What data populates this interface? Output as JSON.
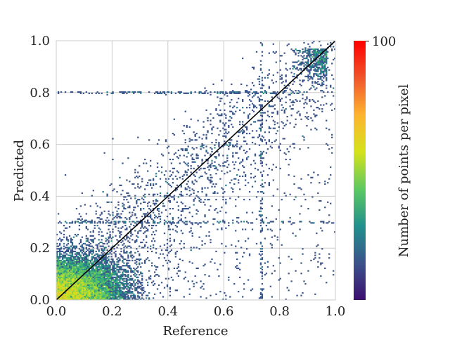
{
  "chart_data": {
    "type": "heatmap",
    "xlabel": "Reference",
    "ylabel": "Predicted",
    "xlim": [
      0,
      1
    ],
    "ylim": [
      0,
      1
    ],
    "xticks": [
      "0.0",
      "0.2",
      "0.4",
      "0.6",
      "0.8",
      "1.0"
    ],
    "yticks": [
      "0.0",
      "0.2",
      "0.4",
      "0.6",
      "0.8",
      "1.0"
    ],
    "grid": true,
    "reference_line": {
      "x": [
        0,
        1
      ],
      "y": [
        0,
        1
      ],
      "color": "#000000"
    },
    "colorbar": {
      "label": "Number of points per pixel",
      "max_label": "100",
      "min": 0,
      "max": 100,
      "colormap": [
        "#3b0f6f",
        "#3b528b",
        "#21918c",
        "#5ec962",
        "#d5e21a",
        "#fdb42f",
        "#f0542b",
        "#ff0000"
      ]
    },
    "features": {
      "dense_cluster_center": [
        0.07,
        0.05
      ],
      "horizontal_streaks_y": [
        0.8,
        0.3
      ],
      "vertical_streak_x": 0.735,
      "upper_right_cluster": [
        0.97,
        0.97
      ]
    }
  }
}
